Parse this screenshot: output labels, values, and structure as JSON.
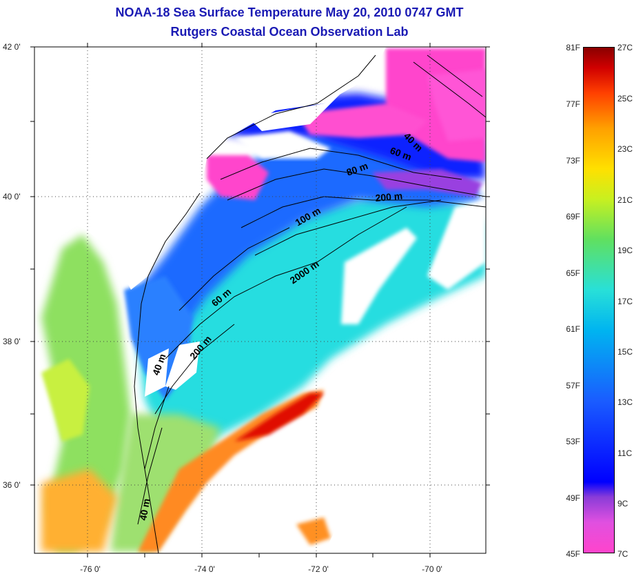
{
  "title": {
    "line1": "NOAA-18 Sea Surface Temperature May 20, 2010 0747 GMT",
    "line2": "Rutgers Coastal Ocean Observation Lab"
  },
  "axes": {
    "lat_ticks": [
      "42 0'",
      "40 0'",
      "38 0'",
      "36 0'"
    ],
    "lon_ticks": [
      "-76 0'",
      "-74 0'",
      "-72 0'",
      "-70 0'"
    ]
  },
  "colorbar": {
    "fahrenheit": [
      "81F",
      "77F",
      "73F",
      "69F",
      "65F",
      "61F",
      "57F",
      "53F",
      "49F",
      "45F"
    ],
    "celsius": [
      "27C",
      "25C",
      "23C",
      "21C",
      "19C",
      "17C",
      "15C",
      "13C",
      "11C",
      "9C",
      "7C"
    ],
    "colors": [
      "#ff44cc",
      "#8a3cd8",
      "#0000ff",
      "#00b4f0",
      "#28e0d8",
      "#60e060",
      "#ffe000",
      "#ffa000",
      "#ff4000",
      "#d00000",
      "#8a0000"
    ]
  },
  "contour_labels": [
    "40 m",
    "60 m",
    "80 m",
    "200 m",
    "100 m",
    "2000 m",
    "60 m",
    "200 m",
    "40 m",
    "40 m"
  ]
}
